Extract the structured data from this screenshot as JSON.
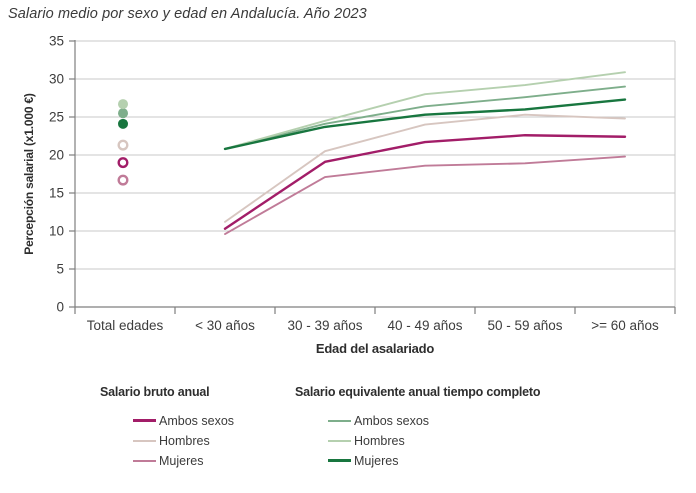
{
  "title": "Salario medio por sexo y edad en Andalucía. Año 2023",
  "chart_data": {
    "type": "line",
    "title": "Salario medio por sexo y edad en Andalucía. Año 2023",
    "xlabel": "Edad del asalariado",
    "ylabel": "Percepción salarial (x1.000 €)",
    "x_categories": [
      "Total edades",
      "< 30 años",
      "30 - 39 años",
      "40 - 49 años",
      "50 - 59 años",
      ">= 60 años"
    ],
    "ylim": [
      0,
      35
    ],
    "ytick_step": 5,
    "grid": true,
    "marker_note": "Total edades is shown as point markers only; lines span the five age groups",
    "colors": {
      "grid": "#c8c8c8",
      "axis": "#7f7f7f",
      "tick_text": "#3c3c3c"
    },
    "series": [
      {
        "group": "Salario bruto anual",
        "name": "Ambos sexos",
        "color": "#a21d68",
        "bold": true,
        "marker": "open",
        "total_edades": 19.0,
        "values": [
          10.3,
          19.1,
          21.7,
          22.6,
          22.4
        ]
      },
      {
        "group": "Salario bruto anual",
        "name": "Hombres",
        "color": "#d7c6c0",
        "bold": false,
        "marker": "open",
        "total_edades": 21.3,
        "values": [
          11.2,
          20.5,
          24.0,
          25.3,
          24.8
        ]
      },
      {
        "group": "Salario bruto anual",
        "name": "Mujeres",
        "color": "#c07b98",
        "bold": false,
        "marker": "open",
        "total_edades": 16.7,
        "values": [
          9.6,
          17.1,
          18.6,
          18.9,
          19.8
        ]
      },
      {
        "group": "Salario equivalente anual tiempo completo",
        "name": "Ambos sexos",
        "color": "#7eae8b",
        "bold": false,
        "marker": "filled",
        "total_edades": 25.5,
        "values": [
          20.8,
          24.1,
          26.4,
          27.6,
          29.0
        ]
      },
      {
        "group": "Salario equivalente anual tiempo completo",
        "name": "Hombres",
        "color": "#b5d0af",
        "bold": false,
        "marker": "filled",
        "total_edades": 26.7,
        "values": [
          20.8,
          24.5,
          28.0,
          29.2,
          30.9
        ]
      },
      {
        "group": "Salario equivalente anual tiempo completo",
        "name": "Mujeres",
        "color": "#18763f",
        "bold": true,
        "marker": "filled",
        "total_edades": 24.1,
        "values": [
          20.8,
          23.7,
          25.3,
          26.0,
          27.3
        ]
      }
    ]
  },
  "legend": {
    "groups": [
      {
        "title": "Salario bruto anual",
        "items": [
          {
            "label": "Ambos sexos",
            "color": "#a21d68"
          },
          {
            "label": "Hombres",
            "color": "#d7c6c0"
          },
          {
            "label": "Mujeres",
            "color": "#c07b98"
          }
        ]
      },
      {
        "title": "Salario equivalente anual tiempo completo",
        "items": [
          {
            "label": "Ambos sexos",
            "color": "#7eae8b"
          },
          {
            "label": "Hombres",
            "color": "#b5d0af"
          },
          {
            "label": "Mujeres",
            "color": "#18763f"
          }
        ]
      }
    ]
  }
}
